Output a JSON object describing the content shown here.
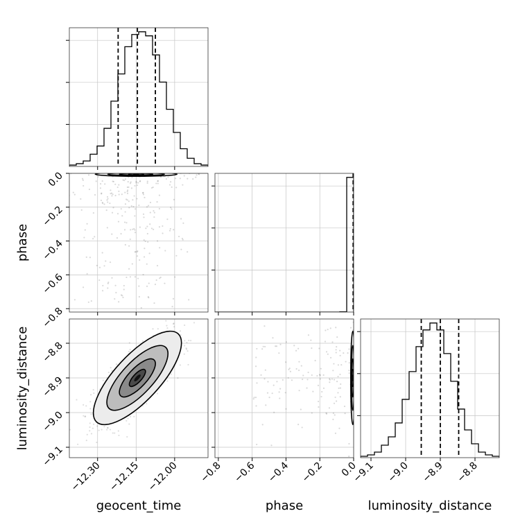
{
  "chart_data": {
    "type": "corner",
    "params": [
      "geocent_time",
      "phase",
      "luminosity_distance"
    ],
    "axis_labels": {
      "x": [
        "geocent_time",
        "phase",
        "luminosity_distance"
      ],
      "y": [
        "phase",
        "luminosity_distance"
      ]
    },
    "ranges": {
      "geocent_time": [
        -12.41,
        -11.87
      ],
      "phase": [
        -0.82,
        0.0
      ],
      "luminosity_distance": [
        -9.13,
        -8.73
      ]
    },
    "ticks": {
      "geocent_time": {
        "values": [
          -12.3,
          -12.15,
          -12.0
        ],
        "labels": [
          "−12.30",
          "−12.15",
          "−12.00"
        ]
      },
      "phase": {
        "values": [
          -0.8,
          -0.6,
          -0.4,
          -0.2,
          0.0
        ],
        "labels": [
          "−0.8",
          "−0.6",
          "−0.4",
          "−0.2",
          "0.0"
        ]
      },
      "luminosity_distance": {
        "values": [
          -9.1,
          -9.0,
          -8.9,
          -8.8
        ],
        "labels": [
          "−9.1",
          "−9.0",
          "−8.9",
          "−8.8"
        ]
      }
    },
    "grid": true,
    "histograms": {
      "geocent_time": {
        "bin_range": [
          -12.41,
          -11.87
        ],
        "counts": [
          1,
          2,
          4,
          9,
          15,
          28,
          48,
          68,
          88,
          97,
          99,
          96,
          82,
          62,
          42,
          25,
          13,
          6,
          2,
          1
        ],
        "quantiles": [
          -12.22,
          -12.145,
          -12.075
        ]
      },
      "phase": {
        "bin_range": [
          -0.82,
          0.0
        ],
        "counts": [
          0,
          0,
          0,
          0,
          0,
          0,
          0,
          0,
          0,
          0,
          0,
          0,
          0,
          0,
          0,
          0,
          0,
          0,
          0.2,
          100
        ],
        "quantiles": [
          -0.003
        ]
      },
      "luminosity_distance": {
        "bin_range": [
          -9.13,
          -8.73
        ],
        "counts": [
          1,
          2,
          4,
          9,
          15,
          25,
          42,
          62,
          80,
          92,
          97,
          92,
          75,
          55,
          35,
          20,
          10,
          4,
          2,
          1
        ],
        "quantiles": [
          -8.955,
          -8.9,
          -8.847
        ]
      }
    },
    "pair_density": [
      {
        "x": "geocent_time",
        "y": "phase",
        "mean": [
          -12.15,
          -0.005
        ],
        "sd": [
          0.065,
          0.005
        ],
        "rho": 0,
        "tail": {
          "x_sd": 0.12,
          "y_range": [
            -0.8,
            0.0
          ],
          "points": 300
        }
      },
      {
        "x": "geocent_time",
        "y": "luminosity_distance",
        "mean": [
          -12.145,
          -8.9
        ],
        "sd": [
          0.07,
          0.055
        ],
        "rho": 0.75
      },
      {
        "x": "phase",
        "y": "luminosity_distance",
        "mean": [
          -0.005,
          -8.9
        ],
        "sd": [
          0.005,
          0.055
        ],
        "rho": 0,
        "tail": {
          "x_range": [
            -0.6,
            0.0
          ],
          "y_sd": 0.09,
          "points": 180
        }
      }
    ]
  }
}
